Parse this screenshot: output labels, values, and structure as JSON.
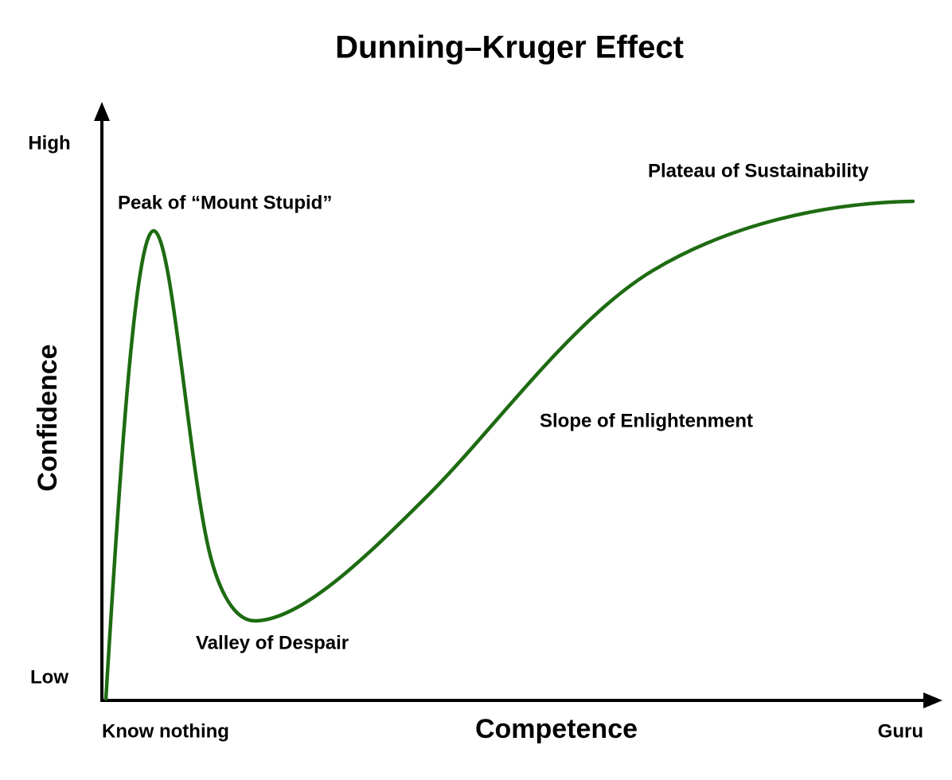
{
  "title": "Dunning–Kruger Effect",
  "y_axis": {
    "label": "Confidence",
    "high": "High",
    "low": "Low"
  },
  "x_axis": {
    "label": "Competence",
    "start": "Know nothing",
    "end": "Guru"
  },
  "annotations": {
    "peak": "Peak of “Mount Stupid”",
    "valley": "Valley of Despair",
    "slope": "Slope of Enlightenment",
    "plateau": "Plateau of Sustainability"
  }
}
